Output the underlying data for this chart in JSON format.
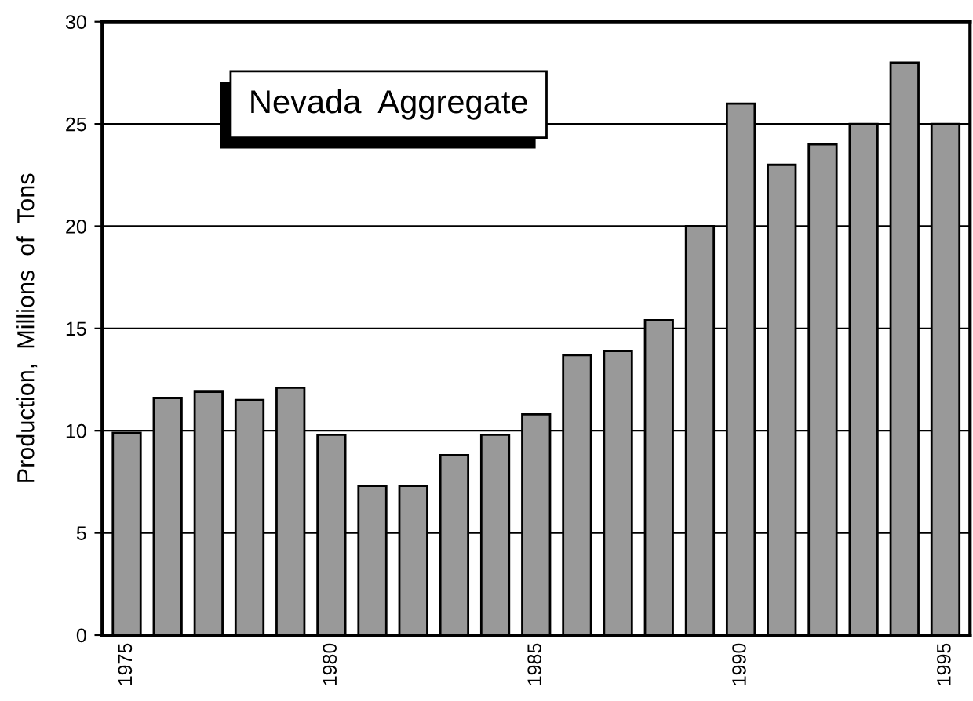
{
  "chart_data": {
    "type": "bar",
    "title": "Nevada  Aggregate",
    "ylabel": "Production,  Millions  of  Tons",
    "categories": [
      "1975",
      null,
      null,
      null,
      null,
      "1980",
      null,
      null,
      null,
      null,
      "1985",
      null,
      null,
      null,
      null,
      "1990",
      null,
      null,
      null,
      null,
      "1995"
    ],
    "values": [
      9.9,
      11.6,
      11.9,
      11.5,
      12.1,
      9.8,
      7.3,
      7.3,
      8.8,
      9.8,
      10.8,
      13.7,
      13.9,
      15.4,
      20.0,
      26.0,
      23.0,
      24.0,
      25.0,
      28.0,
      25.0
    ],
    "color": "#999999",
    "ylim": [
      0,
      30
    ],
    "yticks": [
      0,
      5,
      10,
      15,
      20,
      25,
      30
    ],
    "grid": "y",
    "legend": false
  }
}
